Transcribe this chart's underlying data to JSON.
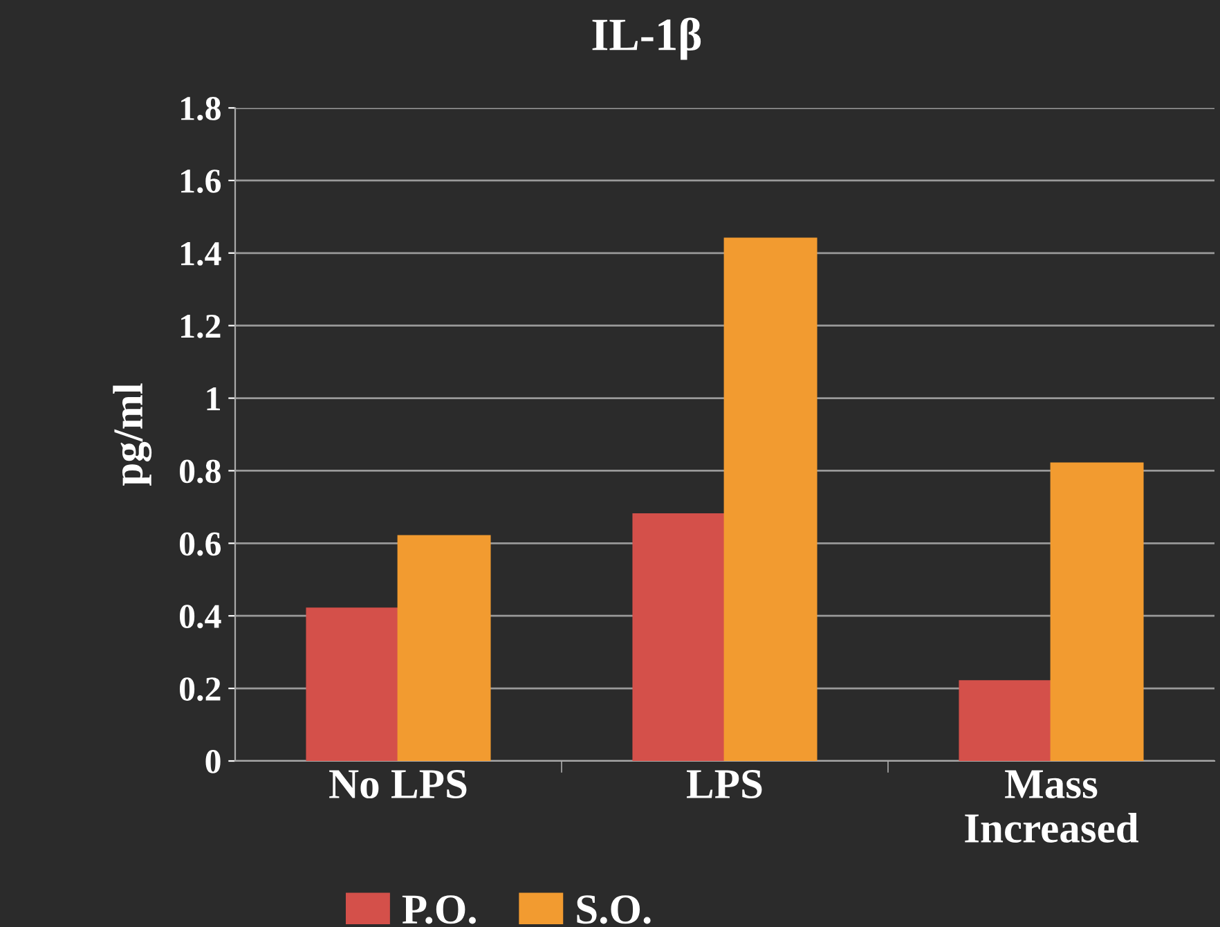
{
  "chart_data": {
    "type": "bar",
    "title": "IL-1β",
    "ylabel": "pg/ml",
    "categories": [
      "No LPS",
      "LPS",
      "Mass\nIncreased"
    ],
    "series": [
      {
        "name": "P.O.",
        "color": "#d4504a",
        "values": [
          0.42,
          0.68,
          0.22
        ]
      },
      {
        "name": "S.O.",
        "color": "#f29b30",
        "values": [
          0.62,
          1.44,
          0.82
        ]
      }
    ],
    "ylim": [
      0,
      1.8
    ],
    "yticks": [
      0,
      0.2,
      0.4,
      0.6,
      0.8,
      1,
      1.2,
      1.4,
      1.6,
      1.8
    ],
    "grid": "y",
    "legend": "bottom"
  }
}
